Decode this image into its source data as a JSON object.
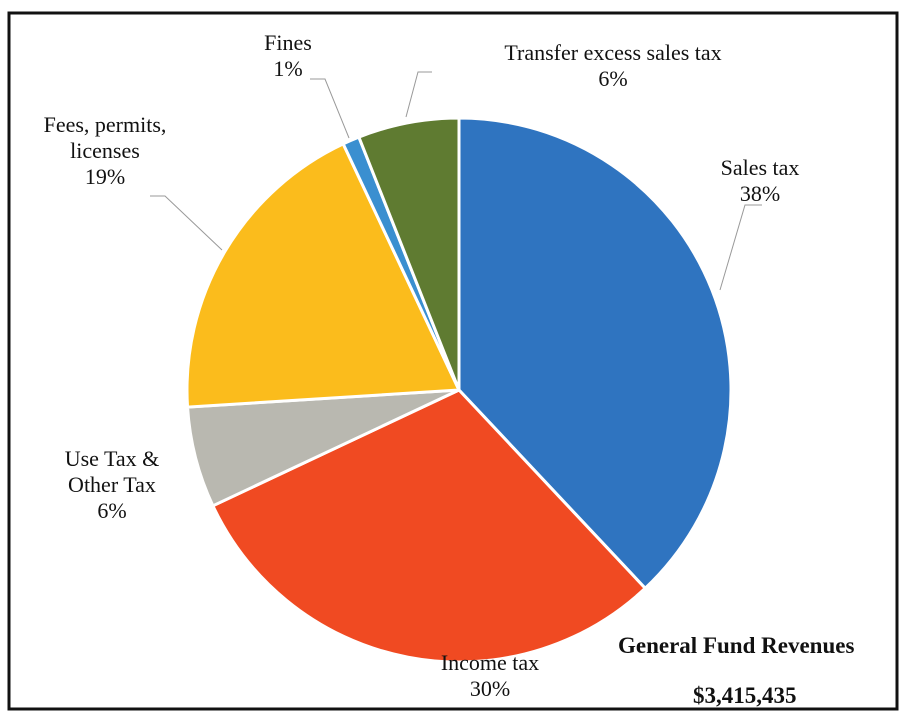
{
  "chart_data": {
    "type": "pie",
    "title": "General Fund Revenues",
    "subtitle": "$3,415,435",
    "categories": [
      "Sales tax",
      "Income tax",
      "Use Tax &\nOther Tax",
      "Fees, permits,\nlicenses",
      "Fines",
      "Transfer excess sales tax"
    ],
    "values": [
      38,
      30,
      6,
      19,
      1,
      6
    ],
    "value_labels": [
      "38%",
      "30%",
      "6%",
      "19%",
      "1%",
      "6%"
    ],
    "colors": [
      "#2f74c0",
      "#f04a22",
      "#b9b8b0",
      "#fbbc1c",
      "#3a8fd0",
      "#5f7b31"
    ]
  }
}
